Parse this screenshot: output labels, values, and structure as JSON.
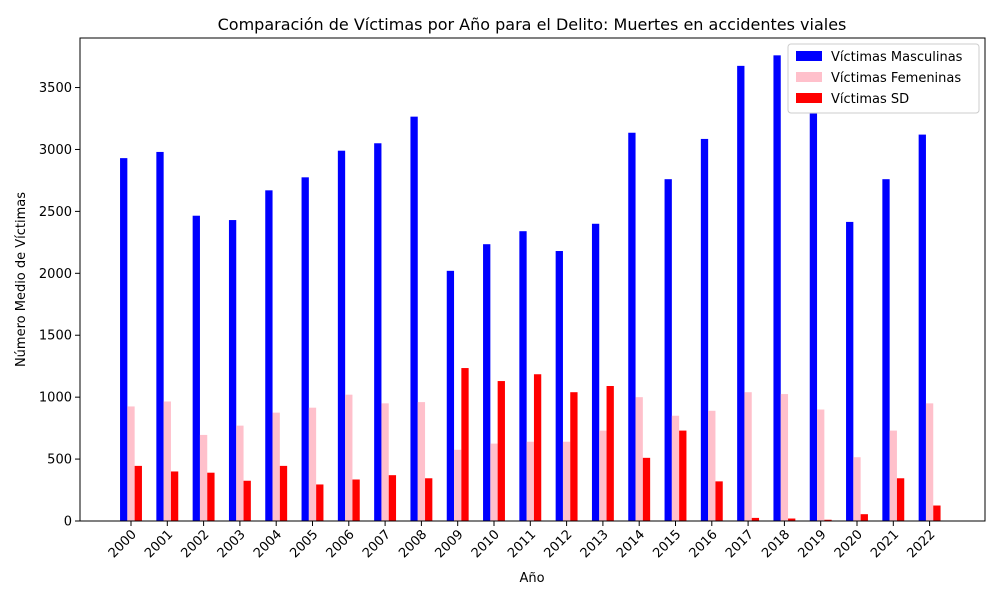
{
  "chart_data": {
    "type": "bar",
    "title": "Comparación de Víctimas por Año para el Delito: Muertes en accidentes viales",
    "xlabel": "Año",
    "ylabel": "Número Medio de Víctimas",
    "ylim": [
      0,
      3900
    ],
    "yticks": [
      0,
      500,
      1000,
      1500,
      2000,
      2500,
      3000,
      3500
    ],
    "categories": [
      "2000",
      "2001",
      "2002",
      "2003",
      "2004",
      "2005",
      "2006",
      "2007",
      "2008",
      "2009",
      "2010",
      "2011",
      "2012",
      "2013",
      "2014",
      "2015",
      "2016",
      "2017",
      "2018",
      "2019",
      "2020",
      "2021",
      "2022"
    ],
    "legend_position": "top-right",
    "grid": false,
    "series": [
      {
        "name": "Víctimas Masculinas",
        "color": "#0000ff",
        "values": [
          2930,
          2980,
          2465,
          2430,
          2670,
          2775,
          2990,
          3050,
          3265,
          2020,
          2235,
          2340,
          2180,
          2400,
          3135,
          2760,
          3085,
          3675,
          3760,
          3290,
          2415,
          2760,
          3120
        ]
      },
      {
        "name": "Víctimas Femeninas",
        "color": "#ffc0cb",
        "values": [
          925,
          965,
          695,
          770,
          875,
          915,
          1020,
          950,
          960,
          575,
          625,
          640,
          640,
          730,
          1000,
          850,
          890,
          1040,
          1025,
          900,
          515,
          730,
          950
        ]
      },
      {
        "name": "Víctimas SD",
        "color": "#ff0000",
        "values": [
          445,
          400,
          390,
          325,
          445,
          295,
          335,
          370,
          345,
          1235,
          1130,
          1185,
          1040,
          1090,
          510,
          730,
          320,
          25,
          20,
          10,
          55,
          345,
          125
        ]
      }
    ]
  }
}
